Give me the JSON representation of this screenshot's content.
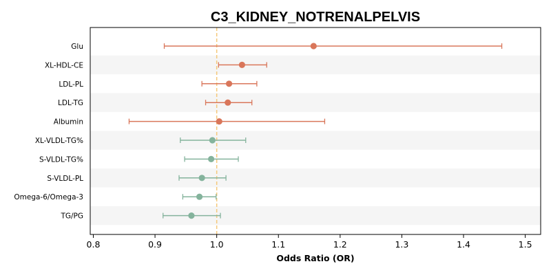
{
  "chart_data": {
    "type": "forest",
    "title": "C3_KIDNEY_NOTRENALPELVIS",
    "xlabel": "Odds Ratio (OR)",
    "ylabel": "",
    "xlim": [
      0.795,
      1.525
    ],
    "xticks": [
      0.8,
      0.9,
      1.0,
      1.1,
      1.2,
      1.3,
      1.4,
      1.5
    ],
    "xtick_labels": [
      "0.8",
      "0.9",
      "1.0",
      "1.1",
      "1.2",
      "1.3",
      "1.4",
      "1.5"
    ],
    "reference_line": 1.0,
    "grid": false,
    "colors": {
      "positive": "#d9765a",
      "negative": "#84b39c",
      "reference": "#f5c87a",
      "band": "#f5f5f5"
    },
    "rows": [
      {
        "label": "Glu",
        "or": 1.157,
        "lo": 0.915,
        "hi": 1.462,
        "group": "positive"
      },
      {
        "label": "XL-HDL-CE",
        "or": 1.041,
        "lo": 1.003,
        "hi": 1.081,
        "group": "positive"
      },
      {
        "label": "LDL-PL",
        "or": 1.02,
        "lo": 0.976,
        "hi": 1.065,
        "group": "positive"
      },
      {
        "label": "LDL-TG",
        "or": 1.018,
        "lo": 0.982,
        "hi": 1.057,
        "group": "positive"
      },
      {
        "label": "Albumin",
        "or": 1.004,
        "lo": 0.858,
        "hi": 1.175,
        "group": "positive"
      },
      {
        "label": "XL-VLDL-TG%",
        "or": 0.993,
        "lo": 0.941,
        "hi": 1.047,
        "group": "negative"
      },
      {
        "label": "S-VLDL-TG%",
        "or": 0.991,
        "lo": 0.948,
        "hi": 1.035,
        "group": "negative"
      },
      {
        "label": "S-VLDL-PL",
        "or": 0.976,
        "lo": 0.939,
        "hi": 1.015,
        "group": "negative"
      },
      {
        "label": "Omega-6/Omega-3",
        "or": 0.972,
        "lo": 0.945,
        "hi": 0.999,
        "group": "negative"
      },
      {
        "label": "TG/PG",
        "or": 0.959,
        "lo": 0.913,
        "hi": 1.006,
        "group": "negative"
      }
    ]
  }
}
